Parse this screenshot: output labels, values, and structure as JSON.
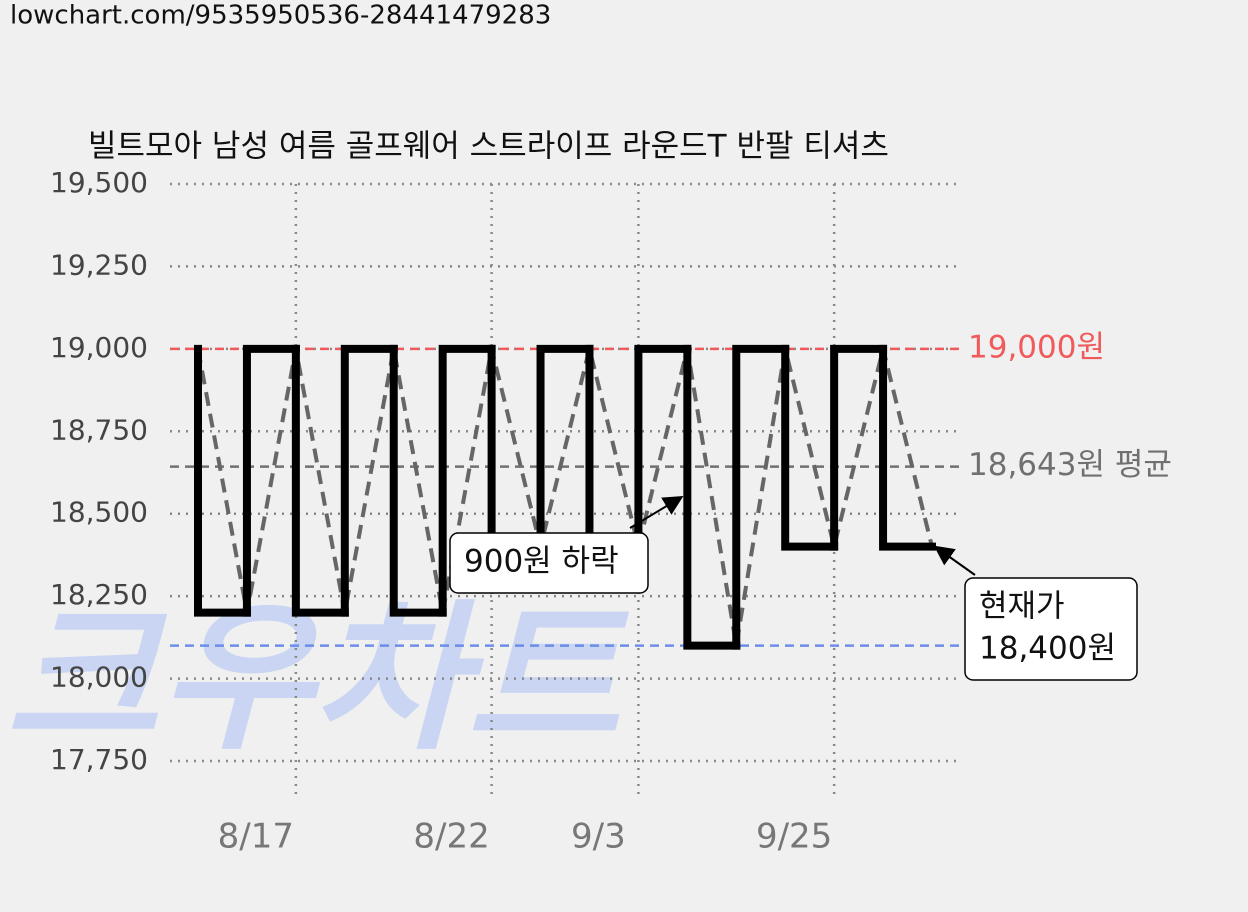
{
  "header": {
    "url": "lowchart.com/9535950536-28441479283"
  },
  "chart_data": {
    "type": "line",
    "title": "빌트모아 남성 여름 골프웨어 스트라이프 라운드T 반팔 티셔츠",
    "watermark": "크우차트",
    "x": [
      null,
      null,
      "8/17",
      null,
      null,
      null,
      "8/22",
      null,
      null,
      "9/3",
      null,
      null,
      null,
      "9/25",
      null,
      null
    ],
    "values": [
      19000,
      18200,
      19000,
      18200,
      19000,
      18200,
      19000,
      18400,
      19000,
      18400,
      19000,
      18100,
      19000,
      18400,
      19000,
      18400
    ],
    "color": "#000000",
    "trend_color": "#666666",
    "ylim": [
      17750,
      19500
    ],
    "yticks": [
      {
        "value": 17750,
        "label": "17,750"
      },
      {
        "value": 18000,
        "label": "18,000"
      },
      {
        "value": 18250,
        "label": "18,250"
      },
      {
        "value": 18500,
        "label": "18,500"
      },
      {
        "value": 18750,
        "label": "18,750"
      },
      {
        "value": 19000,
        "label": "19,000"
      },
      {
        "value": 19250,
        "label": "19,250"
      },
      {
        "value": 19500,
        "label": "19,500"
      }
    ],
    "grid": true,
    "reference_lines": [
      {
        "value": 19000,
        "label": "19,000원",
        "color": "#f05a5a"
      },
      {
        "value": 18643,
        "label": "18,643원 평균",
        "color": "#707070"
      },
      {
        "value": 18100,
        "color": "#6b8ee8"
      }
    ],
    "annotations": [
      {
        "lines": [
          "900원 하락"
        ]
      },
      {
        "lines": [
          "현재가",
          "18,400원"
        ]
      }
    ]
  }
}
